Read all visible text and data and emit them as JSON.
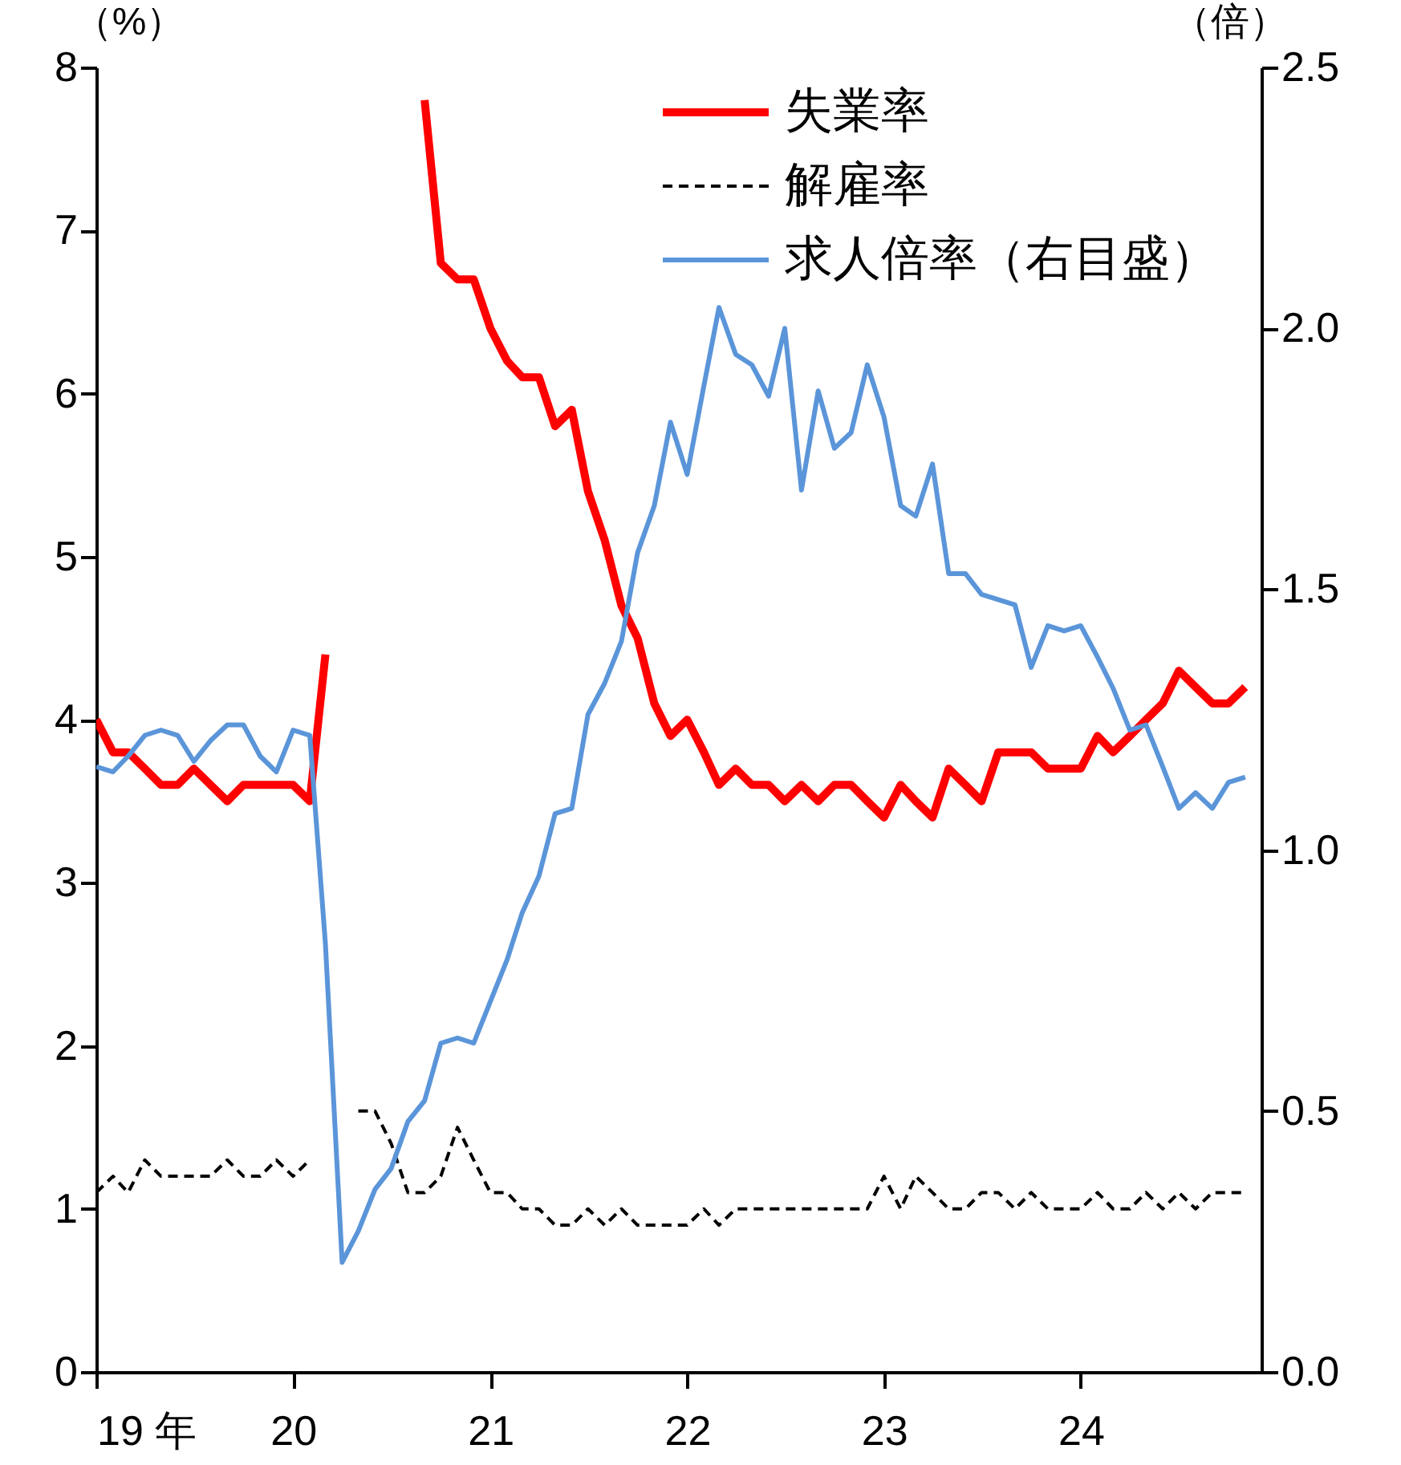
{
  "chart_data": {
    "type": "line",
    "ylabel": "（%）",
    "y2label": "（倍）",
    "x": [
      "2019-01",
      "2019-02",
      "2019-03",
      "2019-04",
      "2019-05",
      "2019-06",
      "2019-07",
      "2019-08",
      "2019-09",
      "2019-10",
      "2019-11",
      "2019-12",
      "2020-01",
      "2020-02",
      "2020-03",
      "2020-04",
      "2020-05",
      "2020-06",
      "2020-07",
      "2020-08",
      "2020-09",
      "2020-10",
      "2020-11",
      "2020-12",
      "2021-01",
      "2021-02",
      "2021-03",
      "2021-04",
      "2021-05",
      "2021-06",
      "2021-07",
      "2021-08",
      "2021-09",
      "2021-10",
      "2021-11",
      "2021-12",
      "2022-01",
      "2022-02",
      "2022-03",
      "2022-04",
      "2022-05",
      "2022-06",
      "2022-07",
      "2022-08",
      "2022-09",
      "2022-10",
      "2022-11",
      "2022-12",
      "2023-01",
      "2023-02",
      "2023-03",
      "2023-04",
      "2023-05",
      "2023-06",
      "2023-07",
      "2023-08",
      "2023-09",
      "2023-10",
      "2023-11",
      "2023-12",
      "2024-01",
      "2024-02",
      "2024-03",
      "2024-04",
      "2024-05",
      "2024-06",
      "2024-07",
      "2024-08",
      "2024-09",
      "2024-10",
      "2024-11"
    ],
    "series": [
      {
        "name": "失業率",
        "color": "#ff0000",
        "line_style": "solid",
        "axis": "y",
        "values": [
          4.0,
          3.8,
          3.8,
          3.7,
          3.6,
          3.6,
          3.7,
          3.6,
          3.5,
          3.6,
          3.6,
          3.6,
          3.6,
          3.5,
          4.4,
          null,
          null,
          null,
          null,
          null,
          7.8,
          6.8,
          6.7,
          6.7,
          6.4,
          6.2,
          6.1,
          6.1,
          5.8,
          5.9,
          5.4,
          5.1,
          4.7,
          4.5,
          4.1,
          3.9,
          4.0,
          3.8,
          3.6,
          3.7,
          3.6,
          3.6,
          3.5,
          3.6,
          3.5,
          3.6,
          3.6,
          3.5,
          3.4,
          3.6,
          3.5,
          3.4,
          3.7,
          3.6,
          3.5,
          3.8,
          3.8,
          3.8,
          3.7,
          3.7,
          3.7,
          3.9,
          3.8,
          3.9,
          4.0,
          4.1,
          4.3,
          4.2,
          4.1,
          4.1,
          4.2
        ]
      },
      {
        "name": "解雇率",
        "color": "#000000",
        "line_style": "dashed",
        "axis": "y",
        "values": [
          1.1,
          1.2,
          1.1,
          1.3,
          1.2,
          1.2,
          1.2,
          1.2,
          1.3,
          1.2,
          1.2,
          1.3,
          1.2,
          1.3,
          null,
          null,
          1.6,
          1.6,
          1.4,
          1.1,
          1.1,
          1.2,
          1.5,
          1.3,
          1.1,
          1.1,
          1.0,
          1.0,
          0.9,
          0.9,
          1.0,
          0.9,
          1.0,
          0.9,
          0.9,
          0.9,
          0.9,
          1.0,
          0.9,
          1.0,
          1.0,
          1.0,
          1.0,
          1.0,
          1.0,
          1.0,
          1.0,
          1.0,
          1.2,
          1.0,
          1.2,
          1.1,
          1.0,
          1.0,
          1.1,
          1.1,
          1.0,
          1.1,
          1.0,
          1.0,
          1.0,
          1.1,
          1.0,
          1.0,
          1.1,
          1.0,
          1.1,
          1.0,
          1.1,
          1.1,
          1.1
        ]
      },
      {
        "name": "求人倍率（右目盛）",
        "color": "#5b95d9",
        "line_style": "solid",
        "axis": "y2",
        "values": [
          1.16,
          1.15,
          1.18,
          1.22,
          1.23,
          1.22,
          1.17,
          1.21,
          1.24,
          1.24,
          1.18,
          1.15,
          1.23,
          1.22,
          0.82,
          0.21,
          0.27,
          0.35,
          0.39,
          0.48,
          0.52,
          0.63,
          0.64,
          0.63,
          0.71,
          0.79,
          0.88,
          0.95,
          1.07,
          1.08,
          1.26,
          1.32,
          1.4,
          1.57,
          1.66,
          1.82,
          1.72,
          1.89,
          2.04,
          1.95,
          1.93,
          1.87,
          2.0,
          1.69,
          1.88,
          1.77,
          1.8,
          1.93,
          1.83,
          1.66,
          1.64,
          1.74,
          1.53,
          1.53,
          1.49,
          1.48,
          1.47,
          1.35,
          1.43,
          1.42,
          1.43,
          1.37,
          1.31,
          1.23,
          1.24,
          1.16,
          1.08,
          1.11,
          1.08,
          1.13,
          1.14
        ]
      }
    ],
    "xlim": [
      "2019-01",
      "2024-12"
    ],
    "xticks": [
      {
        "value": "2019-01",
        "label": "19 年"
      },
      {
        "value": "2020-01",
        "label": "20"
      },
      {
        "value": "2021-01",
        "label": "21"
      },
      {
        "value": "2022-01",
        "label": "22"
      },
      {
        "value": "2023-01",
        "label": "23"
      },
      {
        "value": "2024-01",
        "label": "24"
      }
    ],
    "ylim": [
      0,
      8
    ],
    "yticks": [
      0,
      1,
      2,
      3,
      4,
      5,
      6,
      7,
      8
    ],
    "y2lim": [
      0,
      2.5
    ],
    "y2ticks": [
      {
        "value": 0,
        "label": "0.0"
      },
      {
        "value": 0.5,
        "label": "0.5"
      },
      {
        "value": 1,
        "label": "1.0"
      },
      {
        "value": 1.5,
        "label": "1.5"
      },
      {
        "value": 2,
        "label": "2.0"
      },
      {
        "value": 2.5,
        "label": "2.5"
      }
    ],
    "grid": false,
    "legend": "top right",
    "marker": "none"
  }
}
